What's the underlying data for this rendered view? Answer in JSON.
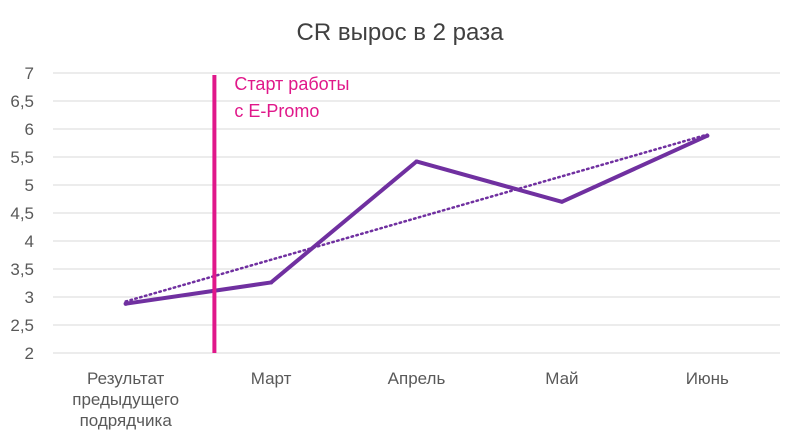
{
  "chart_data": {
    "type": "line",
    "title": "CR вырос в 2 раза",
    "categories": [
      [
        "Результат",
        "предыдущего",
        "подрядчика"
      ],
      [
        "Март"
      ],
      [
        "Апрель"
      ],
      [
        "Май"
      ],
      [
        "Июнь"
      ]
    ],
    "series": [
      {
        "values": [
          2.88,
          3.26,
          5.42,
          4.7,
          5.88
        ],
        "color": "#7030a0"
      }
    ],
    "trendline": {
      "style": "dotted",
      "color": "#7030a0",
      "start": 2.92,
      "end": 5.9
    },
    "ylim": [
      2,
      7
    ],
    "yticks": [
      "2",
      "2,5",
      "3",
      "3,5",
      "4",
      "4,5",
      "5",
      "5,5",
      "6",
      "6,5",
      "7"
    ],
    "xlabel": "",
    "ylabel": "",
    "grid": true,
    "annotation": {
      "lines": [
        "Старт работы",
        "с E-Promo"
      ],
      "color": "#e0188a",
      "marker_position": 0.5
    }
  }
}
